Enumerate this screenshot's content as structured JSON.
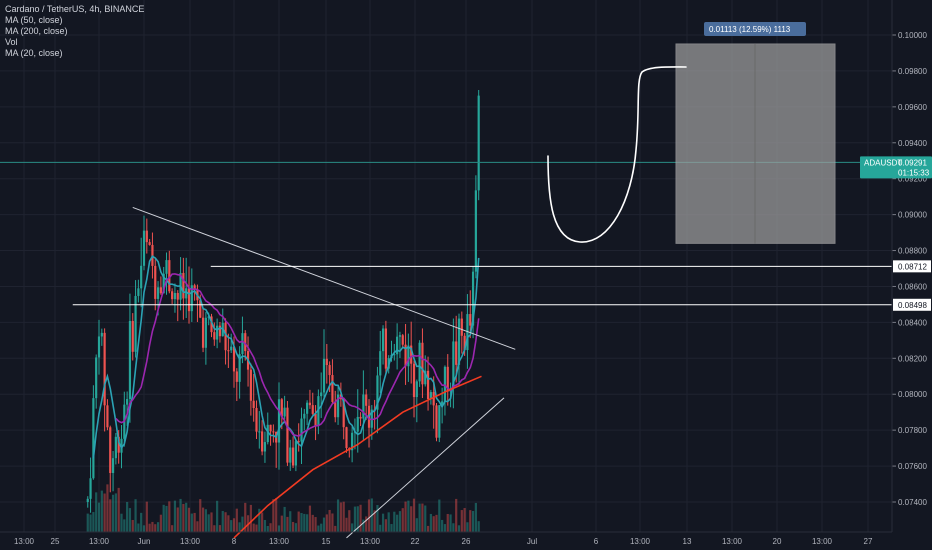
{
  "legend": {
    "symbol": "Cardano / TetherUS, 4h, BINANCE",
    "ma50": "MA (50, close)",
    "ma200": "MA (200, close)",
    "vol": "Vol",
    "ma20": "MA (20, close)"
  },
  "colors": {
    "background": "#131722",
    "grid": "#1f2330",
    "up": "#26a69a",
    "down": "#ef5350",
    "ma20": "#2ba3b5",
    "ma50": "#9c27b0",
    "ma200": "#f23b22",
    "current_line": "#2a8c85",
    "projection_box": "#9e9e9e",
    "projection_tag": "#4a6d9c"
  },
  "projection": {
    "label": "0.01113 (12.59%) 1113",
    "from": 0.0884,
    "to": 0.0995
  },
  "current_price": {
    "symbol": "ADAUSDT",
    "price": "0.09291",
    "countdown": "01:15:33",
    "value": 0.09291
  },
  "levels": [
    {
      "label": "0.08712",
      "value": 0.08712
    },
    {
      "label": "0.08498",
      "value": 0.08498
    }
  ],
  "chart_data": {
    "type": "candlestick",
    "y_axis_ticks": [
      "0.10000",
      "0.09800",
      "0.09600",
      "0.09400",
      "0.09200",
      "0.09000",
      "0.08800",
      "0.08600",
      "0.08400",
      "0.08200",
      "0.08000",
      "0.07800",
      "0.07600",
      "0.07400"
    ],
    "ylim": [
      0.072,
      0.101
    ],
    "x_axis_ticks": [
      "13:00",
      "25",
      "13:00",
      "Jun",
      "13:00",
      "8",
      "13:00",
      "15",
      "13:00",
      "22",
      "26",
      "Jul",
      "6",
      "13:00",
      "13",
      "13:00",
      "20",
      "13:00",
      "27"
    ],
    "trend_lines": [
      {
        "name": "descending",
        "from": [
          "May 31",
          0.0904
        ],
        "to": [
          "Jul 4",
          0.0825
        ]
      },
      {
        "name": "ascending",
        "from": [
          "Jun 19",
          0.072
        ],
        "to": [
          "Jul 3",
          0.0798
        ]
      }
    ],
    "close_path": [
      [
        "May 27",
        0.074
      ],
      [
        "May 28",
        0.0842
      ],
      [
        "May 29",
        0.076
      ],
      [
        "May 30",
        0.0782
      ],
      [
        "May 31",
        0.0838
      ],
      [
        "Jun 1",
        0.0885
      ],
      [
        "Jun 2",
        0.0866
      ],
      [
        "Jun 3",
        0.0868
      ],
      [
        "Jun 4",
        0.0855
      ],
      [
        "Jun 5",
        0.0858
      ],
      [
        "Jun 6",
        0.0842
      ],
      [
        "Jun 7",
        0.0832
      ],
      [
        "Jun 8",
        0.0835
      ],
      [
        "Jun 9",
        0.0808
      ],
      [
        "Jun 10",
        0.0822
      ],
      [
        "Jun 11",
        0.0785
      ],
      [
        "Jun 12",
        0.0778
      ],
      [
        "Jun 13",
        0.0788
      ],
      [
        "Jun 14",
        0.0775
      ],
      [
        "Jun 15",
        0.078
      ],
      [
        "Jun 16",
        0.079
      ],
      [
        "Jun 17",
        0.0808
      ],
      [
        "Jun 18",
        0.0798
      ],
      [
        "Jun 19",
        0.0786
      ],
      [
        "Jun 20",
        0.0795
      ],
      [
        "Jun 21",
        0.0788
      ],
      [
        "Jun 22",
        0.0815
      ],
      [
        "Jun 23",
        0.0832
      ],
      [
        "Jun 24",
        0.0828
      ],
      [
        "Jun 25",
        0.0818
      ],
      [
        "Jun 26",
        0.0812
      ],
      [
        "Jun 27",
        0.0785
      ],
      [
        "Jun 28",
        0.0812
      ],
      [
        "Jun 29",
        0.0828
      ],
      [
        "Jun 30",
        0.0838
      ],
      [
        "Jul 1",
        0.0929
      ]
    ]
  }
}
